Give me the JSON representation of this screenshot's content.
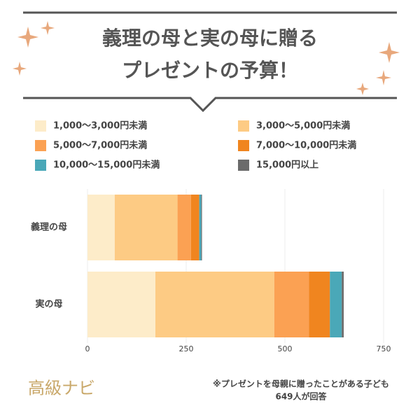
{
  "chart_data": {
    "type": "stacked-barh",
    "title": "義理の母と実の母に贈る",
    "subtitle": "プレゼントの予算！",
    "categories": [
      "義理の母",
      "実の母"
    ],
    "series": [
      {
        "name": "1,000〜3,000円未満",
        "color": "#fdecc9",
        "values": [
          69,
          172
        ]
      },
      {
        "name": "3,000〜5,000円未満",
        "color": "#fdcb84",
        "values": [
          159,
          301
        ]
      },
      {
        "name": "5,000〜7,000円未満",
        "color": "#fba153",
        "values": [
          34,
          88
        ]
      },
      {
        "name": "7,000〜10,000円未満",
        "color": "#f0851f",
        "values": [
          21,
          53
        ]
      },
      {
        "name": "10,000〜15,000円未満",
        "color": "#4aa8b8",
        "values": [
          5,
          30
        ]
      },
      {
        "name": "15,000円以上",
        "color": "#6b6b6b",
        "values": [
          2,
          5
        ]
      }
    ],
    "xlim": [
      0,
      750
    ],
    "xticks": [
      0,
      250,
      500,
      750
    ],
    "grid": true
  },
  "footer": {
    "logo": "高級ナビ",
    "note": [
      "※プレゼントを母親に贈ったことがある子ども",
      "649人が回答"
    ]
  }
}
